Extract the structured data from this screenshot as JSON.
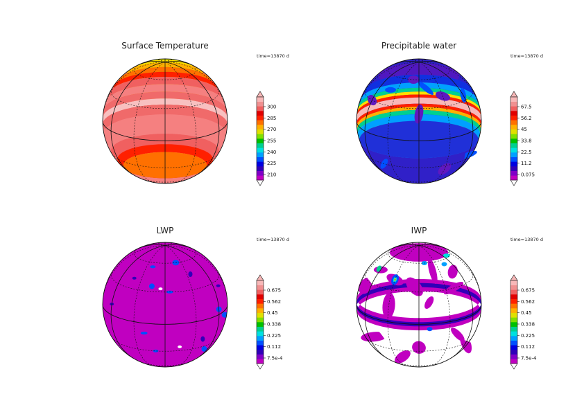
{
  "panels": [
    {
      "title": "Surface Temperature",
      "time_label": "time=13870  d",
      "colorbar_ticks": [
        "300",
        "285",
        "270",
        "255",
        "240",
        "225",
        "210"
      ],
      "field": "temperature"
    },
    {
      "title": "Precipitable water",
      "time_label": "time=13870  d",
      "colorbar_ticks": [
        "67.5",
        "56.2",
        "45",
        "33.8",
        "22.5",
        "11.2",
        "0.075"
      ],
      "field": "water"
    },
    {
      "title": "LWP",
      "time_label": "time=13870  d",
      "colorbar_ticks": [
        "0.675",
        "0.562",
        "0.45",
        "0.338",
        "0.225",
        "0.112",
        "7.5e-4"
      ],
      "field": "lwp"
    },
    {
      "title": "IWP",
      "time_label": "time=13870  d",
      "colorbar_ticks": [
        "0.675",
        "0.562",
        "0.45",
        "0.338",
        "0.225",
        "0.112",
        "7.5e-4"
      ],
      "field": "iwp"
    }
  ],
  "colorbar_colors": [
    "#c000c0",
    "#8000c8",
    "#3000b8",
    "#0000e0",
    "#0050ff",
    "#00a0ff",
    "#00e0e0",
    "#00d090",
    "#00c000",
    "#80e000",
    "#e0e000",
    "#ffb000",
    "#ff7000",
    "#ff2000",
    "#e00000",
    "#f06060",
    "#f09090",
    "#f8b8b8"
  ]
}
